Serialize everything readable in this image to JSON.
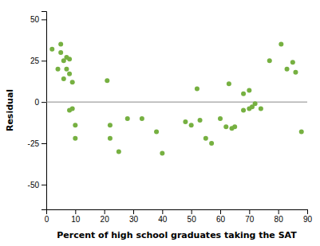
{
  "chart_data": {
    "type": "scatter",
    "x": [
      2,
      4,
      5,
      5,
      6,
      6,
      7,
      7,
      8,
      8,
      8,
      9,
      9,
      10,
      10,
      21,
      22,
      22,
      25,
      28,
      33,
      38,
      40,
      48,
      50,
      52,
      53,
      55,
      57,
      60,
      62,
      63,
      64,
      65,
      68,
      68,
      70,
      70,
      71,
      72,
      74,
      77,
      81,
      83,
      85,
      86,
      88
    ],
    "y": [
      32,
      20,
      30,
      35,
      14,
      25,
      27,
      20,
      26,
      17,
      -5,
      -4,
      12,
      -22,
      -14,
      13,
      -14,
      -22,
      -30,
      -10,
      -10,
      -18,
      -31,
      -12,
      -14,
      8,
      -11,
      -22,
      -25,
      -10,
      -15,
      11,
      -16,
      -15,
      -5,
      5,
      -4,
      7,
      -3,
      -1,
      -4,
      25,
      35,
      20,
      24,
      18,
      -18
    ],
    "xlabel": "Percent of high school graduates taking the SAT",
    "ylabel": "Residual",
    "xlim": [
      0,
      90
    ],
    "ylim": [
      -65,
      55
    ],
    "xticks": [
      0,
      10,
      20,
      30,
      40,
      50,
      60,
      70,
      80,
      90
    ],
    "yticks": [
      -50,
      -25,
      0,
      25,
      50
    ],
    "color": "#76b041",
    "hline_y": 0
  }
}
